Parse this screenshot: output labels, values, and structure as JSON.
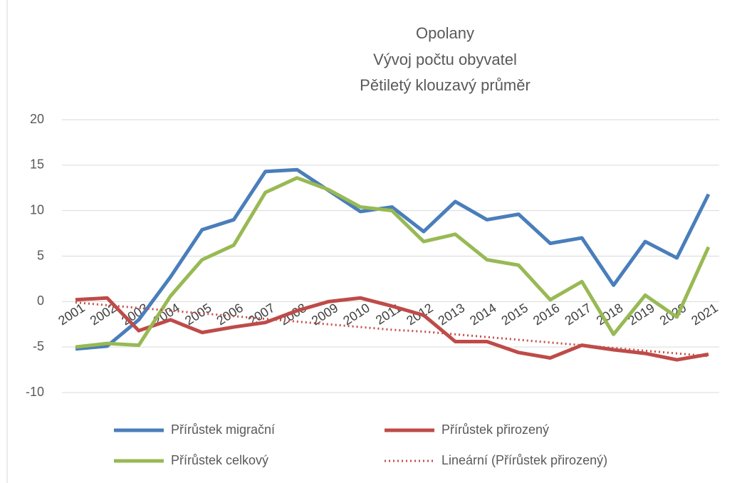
{
  "chart_data": {
    "type": "line",
    "title": [
      "Opolany",
      "Vývoj počtu obyvatel",
      "Pětiletý klouzavý průměr"
    ],
    "categories": [
      "2001",
      "2002",
      "2003",
      "2004",
      "2005",
      "2006",
      "2007",
      "2008",
      "2009",
      "2010",
      "2011",
      "2012",
      "2013",
      "2014",
      "2015",
      "2016",
      "2017",
      "2018",
      "2019",
      "2020",
      "2021"
    ],
    "series": [
      {
        "name": "Přírůstek migrační",
        "color": "#4a7ebb",
        "line_style": "solid",
        "values": [
          -5.2,
          -4.9,
          -2.0,
          2.7,
          7.9,
          9.0,
          14.3,
          14.5,
          12.2,
          9.9,
          10.4,
          7.7,
          11.0,
          9.0,
          9.6,
          6.4,
          7.0,
          1.8,
          6.6,
          4.8,
          11.8
        ]
      },
      {
        "name": "Přírůstek přirozený",
        "color": "#be4b48",
        "line_style": "solid",
        "values": [
          0.2,
          0.4,
          -3.2,
          -2.0,
          -3.4,
          -2.8,
          -2.3,
          -1.0,
          0.0,
          0.4,
          -0.5,
          -1.5,
          -4.4,
          -4.4,
          -5.6,
          -6.2,
          -4.8,
          -5.3,
          -5.7,
          -6.4,
          -5.8
        ]
      },
      {
        "name": "Přírůstek celkový",
        "color": "#98b954",
        "line_style": "solid",
        "values": [
          -5.0,
          -4.6,
          -4.8,
          0.6,
          4.6,
          6.2,
          12.0,
          13.6,
          12.3,
          10.4,
          10.0,
          6.6,
          7.4,
          4.6,
          4.0,
          0.2,
          2.2,
          -3.6,
          0.7,
          -1.7,
          6.0
        ]
      },
      {
        "name": "Lineární (Přírůstek přirozený)",
        "color": "#c0504d",
        "line_style": "dotted",
        "values": [
          -0.1,
          -0.4,
          -0.7,
          -1.0,
          -1.3,
          -1.6,
          -1.9,
          -2.2,
          -2.5,
          -2.8,
          -3.1,
          -3.3,
          -3.6,
          -3.9,
          -4.2,
          -4.5,
          -4.8,
          -5.1,
          -5.4,
          -5.7,
          -6.0
        ]
      }
    ],
    "ylim": [
      -10,
      20
    ],
    "yticks": [
      -10,
      -5,
      0,
      5,
      10,
      15,
      20
    ],
    "grid": true
  }
}
